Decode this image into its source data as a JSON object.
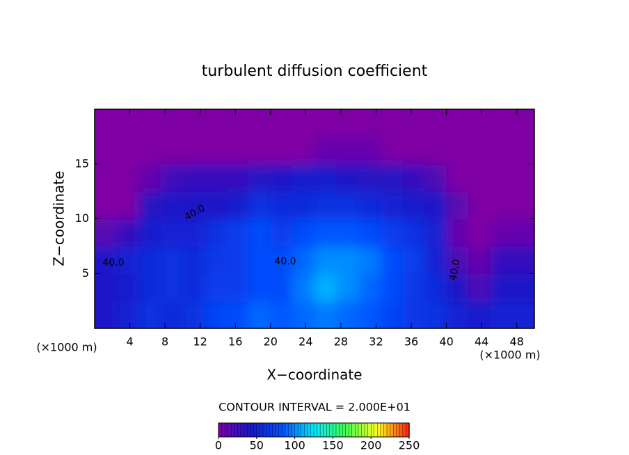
{
  "chart_data": {
    "type": "heatmap",
    "title": "turbulent diffusion coefficient",
    "xlabel": "X−coordinate",
    "ylabel": "Z−coordinate",
    "unit_label": "(×1000 m)",
    "contour_note": "CONTOUR INTERVAL = 2.000E+01",
    "annotations": [
      "40.0",
      "40.0",
      "40.0",
      "40.0"
    ],
    "xlim": [
      0,
      50
    ],
    "xticks": [
      4,
      8,
      12,
      16,
      20,
      24,
      28,
      32,
      36,
      40,
      44,
      48
    ],
    "ylim": [
      0,
      20
    ],
    "yticks": [
      5,
      10,
      15
    ],
    "clim": [
      0,
      250
    ],
    "colorbar_ticks": [
      0,
      50,
      100,
      150,
      200,
      250
    ],
    "colors": [
      "#7e00a4",
      "#1818c8",
      "#0050ff",
      "#00e8ff",
      "#40ff50",
      "#ffff20",
      "#ff2010"
    ],
    "z": [
      [
        40,
        50,
        60,
        55,
        60,
        75,
        80,
        90,
        85,
        90,
        95,
        90,
        85,
        75,
        65,
        60,
        50,
        45,
        50,
        50
      ],
      [
        40,
        45,
        55,
        60,
        55,
        70,
        70,
        80,
        80,
        95,
        110,
        100,
        90,
        80,
        65,
        55,
        40,
        20,
        40,
        40
      ],
      [
        40,
        50,
        55,
        60,
        55,
        65,
        70,
        80,
        80,
        90,
        100,
        100,
        95,
        80,
        70,
        50,
        20,
        10,
        30,
        30
      ],
      [
        15,
        30,
        45,
        50,
        50,
        60,
        70,
        80,
        70,
        80,
        85,
        85,
        80,
        70,
        60,
        50,
        10,
        0,
        10,
        10
      ],
      [
        0,
        0,
        35,
        40,
        40,
        40,
        45,
        60,
        55,
        55,
        60,
        60,
        55,
        50,
        45,
        40,
        15,
        0,
        0,
        0
      ],
      [
        0,
        0,
        10,
        25,
        30,
        30,
        30,
        35,
        40,
        45,
        45,
        40,
        35,
        35,
        30,
        20,
        0,
        0,
        0,
        0
      ],
      [
        0,
        0,
        0,
        0,
        0,
        0,
        0,
        0,
        0,
        0,
        10,
        10,
        10,
        0,
        0,
        0,
        0,
        0,
        0,
        0
      ],
      [
        0,
        0,
        0,
        0,
        0,
        0,
        0,
        0,
        0,
        0,
        0,
        0,
        0,
        0,
        0,
        0,
        0,
        0,
        0,
        0
      ]
    ]
  }
}
